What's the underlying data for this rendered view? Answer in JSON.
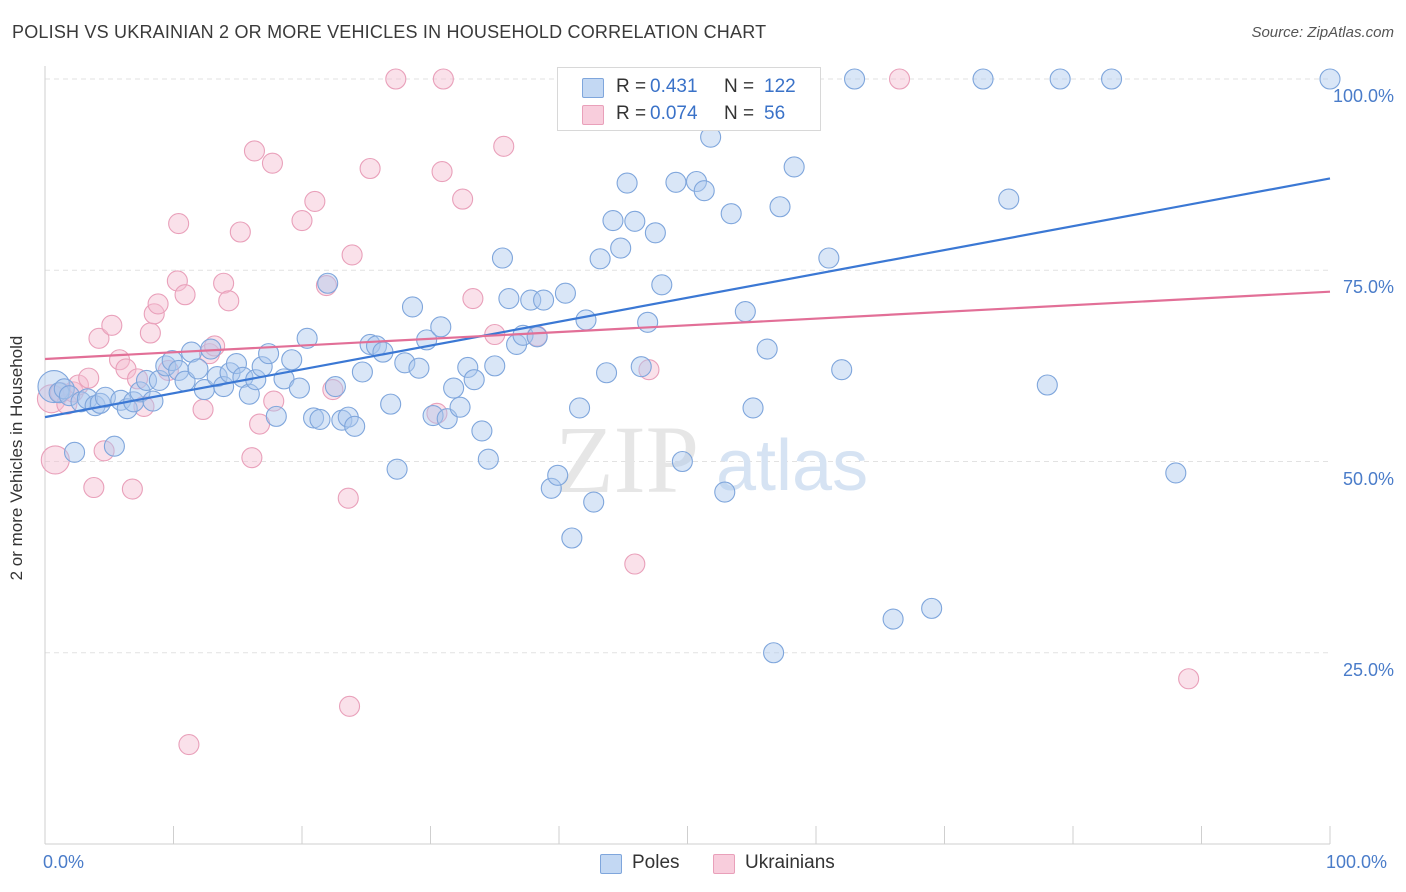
{
  "title": "POLISH VS UKRAINIAN 2 OR MORE VEHICLES IN HOUSEHOLD CORRELATION CHART",
  "source": "Source: ZipAtlas.com",
  "watermark": {
    "zip": "ZIP",
    "atlas": "atlas"
  },
  "colors": {
    "blue": "#4a7cc9",
    "blue_fill": "#aac7ee",
    "pink": "#e8739c",
    "pink_fill": "#f5bcd0",
    "grid": "#e2e2e2"
  },
  "legend": {
    "poles": {
      "r_label": "R =",
      "r_value": "0.431",
      "n_label": "N =",
      "n_value": "122"
    },
    "ukrainians": {
      "r_label": "R =",
      "r_value": "0.074",
      "n_label": "N =",
      "n_value": "56"
    }
  },
  "chart_data": {
    "type": "scatter",
    "title": "POLISH VS UKRAINIAN 2 OR MORE VEHICLES IN HOUSEHOLD CORRELATION CHART",
    "xlabel": "",
    "ylabel": "2 or more Vehicles in Household",
    "xlim": [
      0,
      100
    ],
    "ylim": [
      0,
      100
    ],
    "x_ticks": [
      "0.0%",
      "100.0%"
    ],
    "y_ticks": [
      "25.0%",
      "50.0%",
      "75.0%",
      "100.0%"
    ],
    "y_tick_values": [
      25,
      50,
      75,
      100
    ],
    "grid": true,
    "legend_position": "top-center",
    "legend_labels": [
      "Poles",
      "Ukrainians"
    ],
    "series": [
      {
        "name": "Poles",
        "color": "#4a7cc9",
        "trend": {
          "x": [
            0,
            100
          ],
          "y": [
            55.8,
            87.0
          ]
        },
        "points": [
          [
            0.7,
            59.8
          ],
          [
            1.1,
            59.0
          ],
          [
            1.5,
            59.5
          ],
          [
            1.9,
            58.6
          ],
          [
            2.3,
            51.2
          ],
          [
            2.8,
            57.8
          ],
          [
            3.3,
            58.2
          ],
          [
            3.9,
            57.3
          ],
          [
            4.3,
            57.6
          ],
          [
            4.7,
            58.4
          ],
          [
            5.4,
            52.0
          ],
          [
            5.9,
            58.0
          ],
          [
            6.4,
            56.9
          ],
          [
            6.9,
            57.8
          ],
          [
            7.4,
            59.1
          ],
          [
            7.9,
            60.6
          ],
          [
            8.4,
            57.9
          ],
          [
            8.9,
            60.6
          ],
          [
            9.4,
            62.5
          ],
          [
            9.9,
            63.2
          ],
          [
            10.4,
            61.9
          ],
          [
            10.9,
            60.5
          ],
          [
            11.4,
            64.3
          ],
          [
            11.9,
            62.1
          ],
          [
            12.4,
            59.4
          ],
          [
            12.9,
            64.7
          ],
          [
            13.4,
            61.1
          ],
          [
            13.9,
            59.8
          ],
          [
            14.4,
            61.6
          ],
          [
            14.9,
            62.8
          ],
          [
            15.4,
            61.0
          ],
          [
            15.9,
            58.8
          ],
          [
            16.4,
            60.7
          ],
          [
            16.9,
            62.4
          ],
          [
            17.4,
            64.1
          ],
          [
            18.0,
            55.9
          ],
          [
            18.6,
            60.8
          ],
          [
            19.2,
            63.3
          ],
          [
            19.8,
            59.6
          ],
          [
            20.4,
            66.1
          ],
          [
            20.9,
            55.7
          ],
          [
            21.4,
            55.5
          ],
          [
            22.0,
            73.3
          ],
          [
            22.6,
            59.8
          ],
          [
            23.1,
            55.4
          ],
          [
            23.6,
            55.8
          ],
          [
            24.1,
            54.6
          ],
          [
            24.7,
            61.7
          ],
          [
            25.3,
            65.3
          ],
          [
            25.8,
            65.1
          ],
          [
            26.3,
            64.3
          ],
          [
            26.9,
            57.5
          ],
          [
            27.4,
            49.0
          ],
          [
            28.0,
            62.9
          ],
          [
            28.6,
            70.2
          ],
          [
            29.1,
            62.2
          ],
          [
            29.7,
            65.9
          ],
          [
            30.2,
            56.0
          ],
          [
            30.8,
            67.6
          ],
          [
            31.3,
            55.6
          ],
          [
            31.8,
            59.6
          ],
          [
            32.3,
            57.1
          ],
          [
            32.9,
            62.3
          ],
          [
            33.4,
            60.7
          ],
          [
            34.0,
            54.0
          ],
          [
            34.5,
            50.3
          ],
          [
            35.0,
            62.5
          ],
          [
            35.6,
            76.6
          ],
          [
            36.1,
            71.3
          ],
          [
            36.7,
            65.3
          ],
          [
            37.2,
            66.5
          ],
          [
            37.8,
            71.1
          ],
          [
            38.3,
            66.3
          ],
          [
            38.8,
            71.1
          ],
          [
            39.4,
            46.5
          ],
          [
            39.9,
            48.2
          ],
          [
            40.5,
            72.0
          ],
          [
            41.0,
            40.0
          ],
          [
            41.6,
            57.0
          ],
          [
            42.1,
            68.5
          ],
          [
            42.7,
            44.7
          ],
          [
            43.2,
            76.5
          ],
          [
            43.7,
            61.6
          ],
          [
            44.2,
            81.5
          ],
          [
            44.8,
            77.9
          ],
          [
            45.3,
            86.4
          ],
          [
            45.9,
            81.4
          ],
          [
            46.4,
            62.4
          ],
          [
            46.9,
            68.2
          ],
          [
            47.5,
            79.9
          ],
          [
            48.0,
            73.1
          ],
          [
            48.6,
            94.8
          ],
          [
            49.1,
            86.5
          ],
          [
            49.6,
            50.0
          ],
          [
            50.2,
            100.0
          ],
          [
            50.7,
            86.6
          ],
          [
            51.3,
            85.4
          ],
          [
            51.8,
            92.4
          ],
          [
            52.4,
            100.0
          ],
          [
            52.9,
            46.0
          ],
          [
            53.4,
            82.4
          ],
          [
            54.0,
            100.0
          ],
          [
            54.5,
            69.6
          ],
          [
            55.1,
            57.0
          ],
          [
            55.6,
            100.0
          ],
          [
            56.2,
            64.7
          ],
          [
            56.7,
            25.0
          ],
          [
            57.2,
            83.3
          ],
          [
            58.3,
            88.5
          ],
          [
            61.0,
            76.6
          ],
          [
            62.0,
            62.0
          ],
          [
            63.0,
            100.0
          ],
          [
            66.0,
            29.4
          ],
          [
            69.0,
            30.8
          ],
          [
            73.0,
            100.0
          ],
          [
            75.0,
            84.3
          ],
          [
            78.0,
            60.0
          ],
          [
            79.0,
            100.0
          ],
          [
            83.0,
            100.0
          ],
          [
            88.0,
            48.5
          ],
          [
            100.0,
            100.0
          ],
          [
            48.8,
            100.0
          ]
        ],
        "sizes": [
          16,
          10,
          10,
          10,
          10,
          10,
          10,
          10,
          10,
          10,
          10,
          10,
          10,
          10,
          10,
          10,
          10,
          10,
          10,
          10,
          10,
          10,
          10,
          10,
          10,
          10,
          10,
          10,
          10,
          10,
          10,
          10,
          10,
          10,
          10,
          10,
          10,
          10,
          10,
          10,
          10,
          10,
          10,
          10,
          10,
          10,
          10,
          10,
          10,
          10,
          10,
          10,
          10,
          10,
          10,
          10,
          10,
          10,
          10,
          10,
          10,
          10,
          10,
          10,
          10,
          10,
          10,
          10,
          10,
          10,
          10,
          10,
          10,
          10,
          10,
          10,
          10,
          10,
          10,
          10,
          10,
          10,
          10,
          10,
          10,
          10,
          10,
          10,
          10,
          10,
          10,
          10,
          10,
          10,
          10,
          10,
          10,
          10,
          10,
          10,
          10,
          10,
          10,
          10,
          10,
          10,
          10,
          10,
          10,
          10,
          10,
          10,
          10,
          10,
          10,
          10,
          10,
          10,
          10,
          10,
          10,
          10
        ]
      },
      {
        "name": "Ukrainians",
        "color": "#e8739c",
        "trend": {
          "x": [
            0,
            100
          ],
          "y": [
            63.4,
            72.2
          ]
        },
        "points": [
          [
            0.5,
            58.2
          ],
          [
            0.8,
            50.2
          ],
          [
            1.2,
            59.0
          ],
          [
            1.7,
            57.5
          ],
          [
            2.2,
            59.1
          ],
          [
            2.6,
            60.0
          ],
          [
            3.4,
            60.9
          ],
          [
            3.8,
            46.6
          ],
          [
            4.2,
            66.1
          ],
          [
            4.6,
            51.4
          ],
          [
            5.2,
            67.8
          ],
          [
            5.8,
            63.3
          ],
          [
            6.3,
            62.1
          ],
          [
            6.8,
            46.4
          ],
          [
            7.2,
            60.8
          ],
          [
            7.7,
            57.2
          ],
          [
            8.2,
            66.8
          ],
          [
            8.5,
            69.3
          ],
          [
            8.8,
            70.6
          ],
          [
            9.6,
            61.9
          ],
          [
            10.3,
            73.6
          ],
          [
            10.4,
            81.1
          ],
          [
            10.9,
            71.8
          ],
          [
            11.2,
            13.0
          ],
          [
            12.3,
            56.8
          ],
          [
            12.8,
            64.1
          ],
          [
            13.2,
            65.1
          ],
          [
            13.9,
            73.3
          ],
          [
            14.3,
            71.0
          ],
          [
            15.2,
            80.0
          ],
          [
            16.1,
            50.5
          ],
          [
            16.7,
            54.9
          ],
          [
            16.3,
            90.6
          ],
          [
            17.8,
            57.9
          ],
          [
            17.7,
            89.0
          ],
          [
            20.0,
            81.5
          ],
          [
            21.0,
            84.0
          ],
          [
            21.9,
            73.0
          ],
          [
            22.4,
            59.4
          ],
          [
            23.9,
            77.0
          ],
          [
            23.6,
            45.2
          ],
          [
            23.7,
            18.0
          ],
          [
            25.3,
            88.3
          ],
          [
            27.3,
            100.0
          ],
          [
            30.5,
            56.3
          ],
          [
            30.9,
            87.9
          ],
          [
            31.0,
            100.0
          ],
          [
            32.5,
            84.3
          ],
          [
            33.3,
            71.3
          ],
          [
            35.0,
            66.6
          ],
          [
            35.7,
            91.2
          ],
          [
            47.0,
            62.0
          ],
          [
            45.9,
            36.6
          ],
          [
            66.5,
            100.0
          ],
          [
            89.0,
            21.6
          ],
          [
            38.3,
            66.4
          ]
        ],
        "sizes": [
          14,
          14,
          10,
          10,
          10,
          10,
          10,
          10,
          10,
          10,
          10,
          10,
          10,
          10,
          10,
          10,
          10,
          10,
          10,
          10,
          10,
          10,
          10,
          10,
          10,
          10,
          10,
          10,
          10,
          10,
          10,
          10,
          10,
          10,
          10,
          10,
          10,
          10,
          10,
          10,
          10,
          10,
          10,
          10,
          10,
          10,
          10,
          10,
          10,
          10,
          10,
          10,
          10,
          10,
          10,
          10
        ]
      }
    ]
  }
}
